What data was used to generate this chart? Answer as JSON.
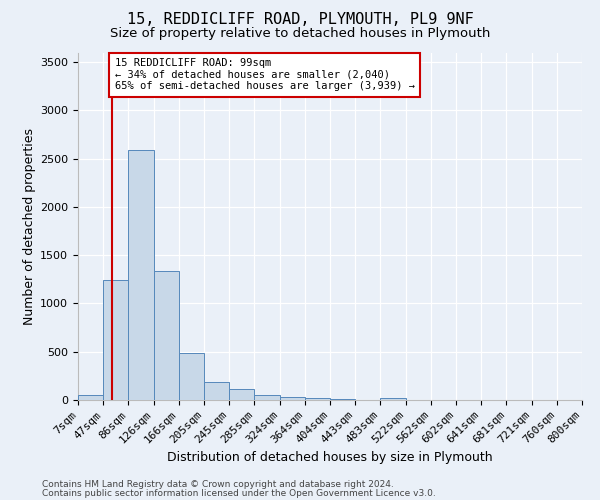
{
  "title1": "15, REDDICLIFF ROAD, PLYMOUTH, PL9 9NF",
  "title2": "Size of property relative to detached houses in Plymouth",
  "xlabel": "Distribution of detached houses by size in Plymouth",
  "ylabel": "Number of detached properties",
  "footnote1": "Contains HM Land Registry data © Crown copyright and database right 2024.",
  "footnote2": "Contains public sector information licensed under the Open Government Licence v3.0.",
  "bin_labels": [
    "7sqm",
    "47sqm",
    "86sqm",
    "126sqm",
    "166sqm",
    "205sqm",
    "245sqm",
    "285sqm",
    "324sqm",
    "364sqm",
    "404sqm",
    "443sqm",
    "483sqm",
    "522sqm",
    "562sqm",
    "602sqm",
    "641sqm",
    "681sqm",
    "721sqm",
    "760sqm",
    "800sqm"
  ],
  "bar_values": [
    50,
    1240,
    2590,
    1340,
    490,
    185,
    110,
    55,
    35,
    20,
    10,
    5,
    25,
    0,
    0,
    0,
    0,
    0,
    0,
    0
  ],
  "bar_color": "#c8d8e8",
  "bar_edgecolor": "#5588bb",
  "redline_bin_index": 1.35,
  "redline_color": "#cc0000",
  "annotation_text_line1": "15 REDDICLIFF ROAD: 99sqm",
  "annotation_text_line2": "← 34% of detached houses are smaller (2,040)",
  "annotation_text_line3": "65% of semi-detached houses are larger (3,939) →",
  "annotation_box_facecolor": "#ffffff",
  "annotation_box_edgecolor": "#cc0000",
  "ylim": [
    0,
    3600
  ],
  "yticks": [
    0,
    500,
    1000,
    1500,
    2000,
    2500,
    3000,
    3500
  ],
  "background_color": "#eaf0f8",
  "grid_color": "#ffffff",
  "title1_fontsize": 11,
  "title2_fontsize": 9.5,
  "xlabel_fontsize": 9,
  "ylabel_fontsize": 9,
  "tick_fontsize": 8,
  "annotation_fontsize": 7.5,
  "footnote_fontsize": 6.5
}
